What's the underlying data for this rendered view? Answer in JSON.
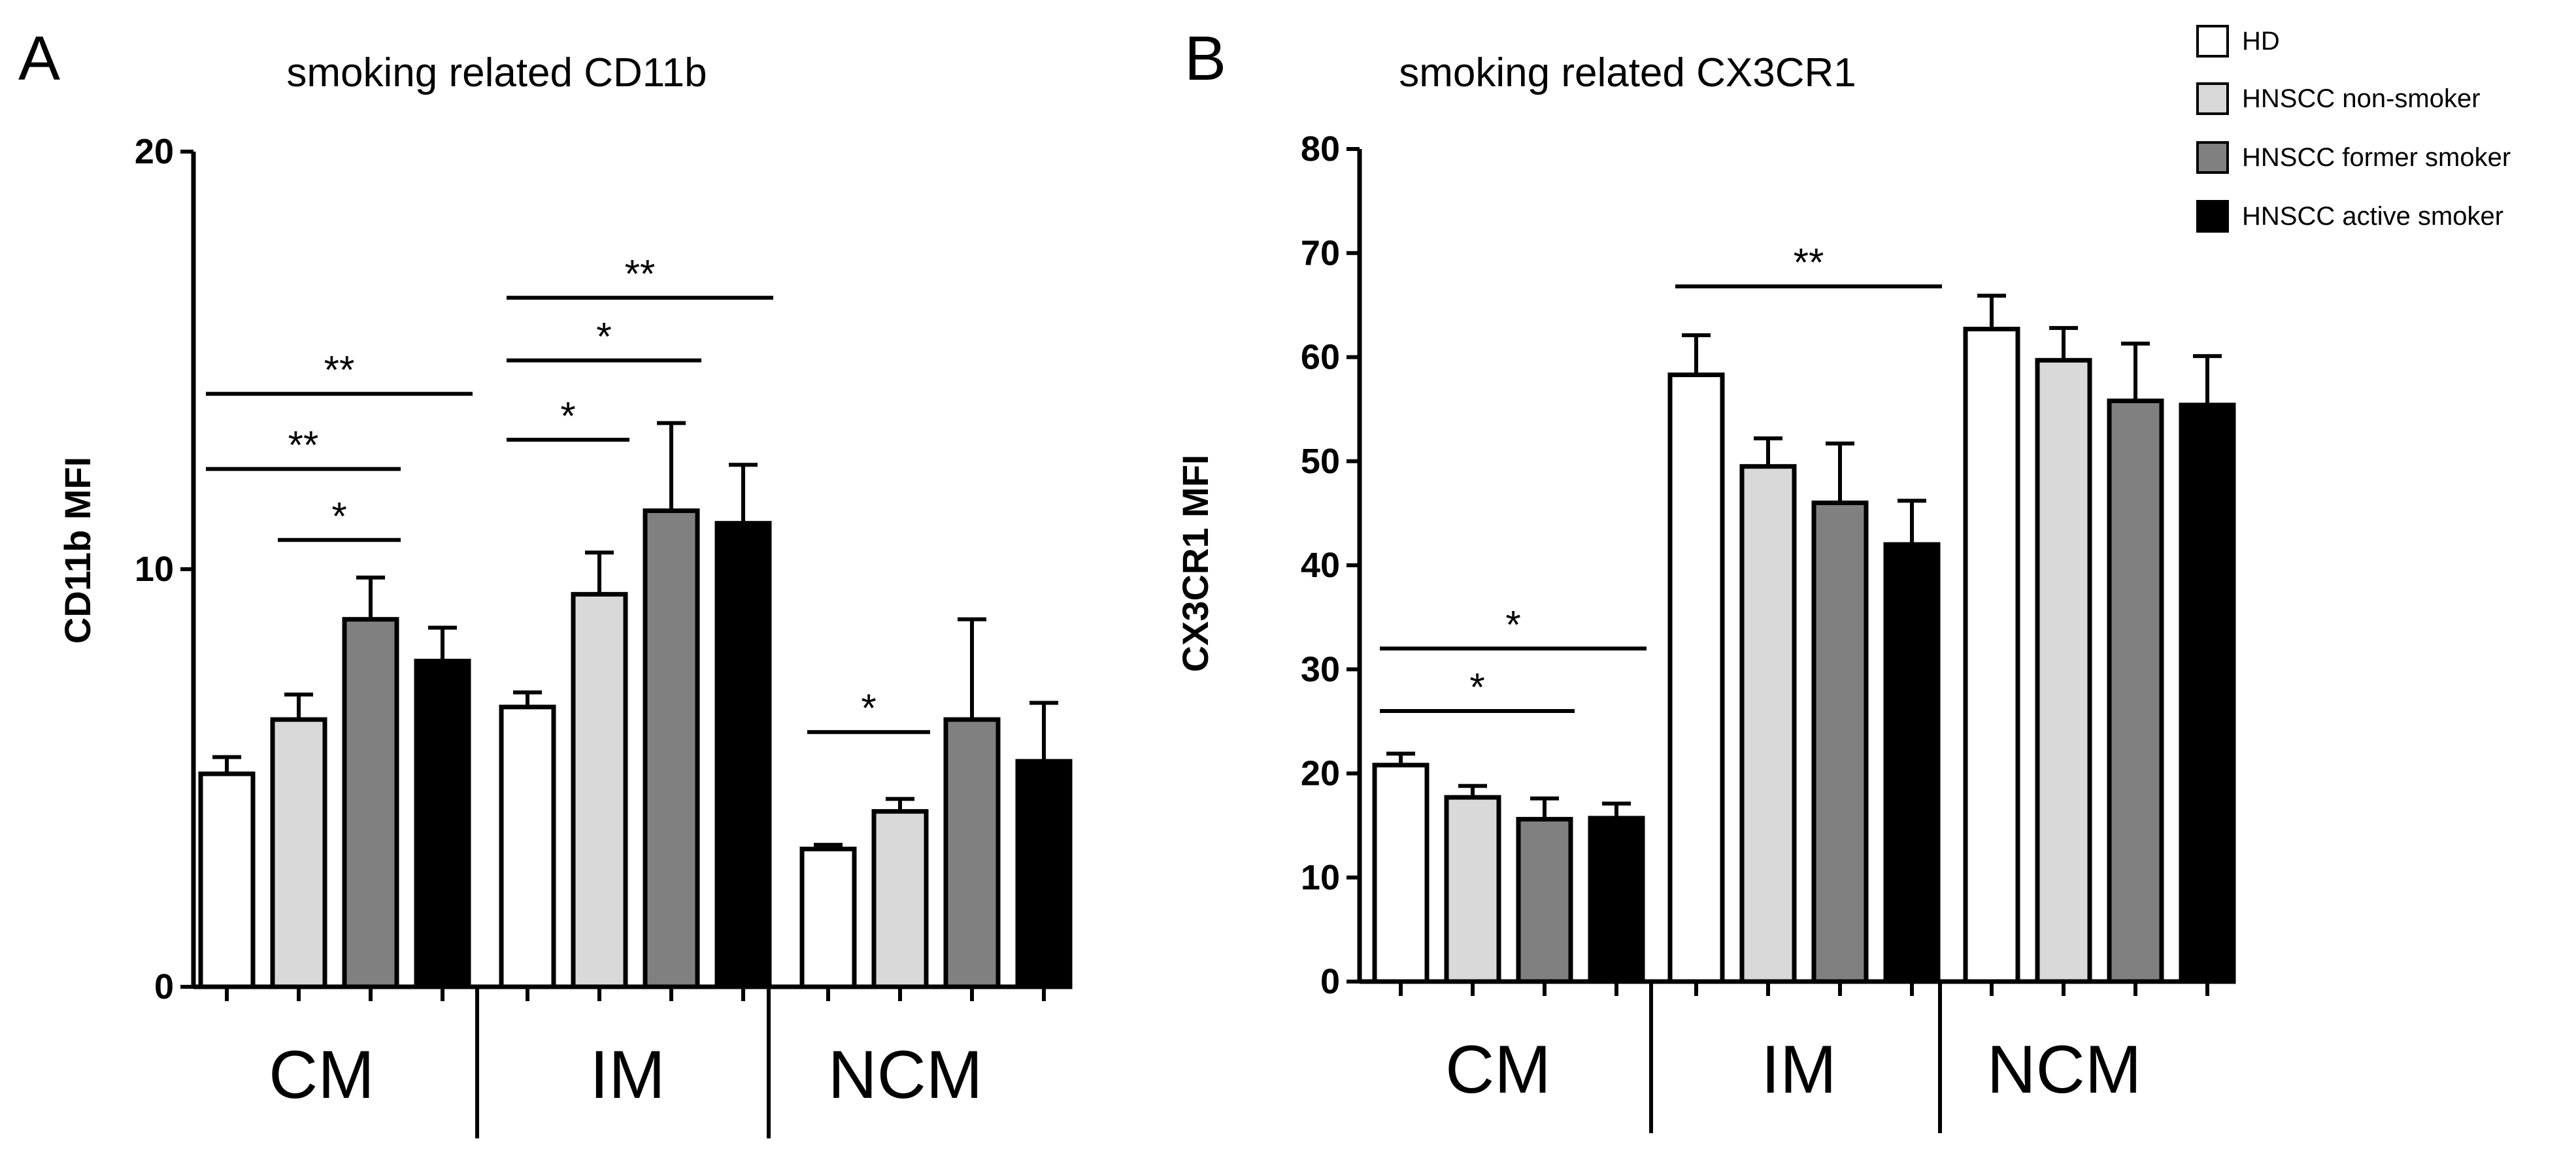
{
  "legend": {
    "entries": [
      {
        "label": "HD",
        "color": "#ffffff"
      },
      {
        "label": "HNSCC non-smoker",
        "color": "#d9d9d9"
      },
      {
        "label": "HNSCC former  smoker",
        "color": "#808080"
      },
      {
        "label": "HNSCC active smoker",
        "color": "#000000"
      }
    ]
  },
  "chart_data": [
    {
      "type": "bar",
      "panel": "A",
      "title": "smoking related CD11b",
      "ylabel": "CD11b MFI",
      "xlabel": "",
      "ylim": [
        0,
        20
      ],
      "yticks": [
        0,
        10,
        20
      ],
      "groups": [
        "CM",
        "IM",
        "NCM"
      ],
      "series": [
        {
          "name": "HD",
          "values": [
            5.1,
            6.7,
            3.3
          ],
          "errors": [
            0.4,
            0.35,
            0.1
          ]
        },
        {
          "name": "HNSCC non-smoker",
          "values": [
            6.4,
            9.4,
            4.2
          ],
          "errors": [
            0.6,
            1.0,
            0.3
          ]
        },
        {
          "name": "HNSCC former  smoker",
          "values": [
            8.8,
            11.4,
            6.4
          ],
          "errors": [
            1.0,
            2.1,
            2.4
          ]
        },
        {
          "name": "HNSCC active smoker",
          "values": [
            7.8,
            11.1,
            5.4
          ],
          "errors": [
            0.8,
            1.4,
            1.4
          ]
        }
      ],
      "annotations": [
        {
          "group": 0,
          "from": 0,
          "to": 3,
          "level": 14.2,
          "label": "**"
        },
        {
          "group": 0,
          "from": 0,
          "to": 2,
          "level": 12.4,
          "label": "**"
        },
        {
          "group": 0,
          "from": 1,
          "to": 2,
          "level": 10.7,
          "label": "*"
        },
        {
          "group": 1,
          "from": 0,
          "to": 3,
          "level": 16.5,
          "label": "**"
        },
        {
          "group": 1,
          "from": 0,
          "to": 2,
          "level": 15.0,
          "label": "*"
        },
        {
          "group": 1,
          "from": 0,
          "to": 1,
          "level": 13.1,
          "label": "*"
        },
        {
          "group": 2,
          "from": 0,
          "to": 1,
          "level": 6.1,
          "label": "*"
        }
      ]
    },
    {
      "type": "bar",
      "panel": "B",
      "title": "smoking related CX3CR1",
      "ylabel": "CX3CR1 MFI",
      "xlabel": "",
      "ylim": [
        0,
        80
      ],
      "yticks": [
        0,
        10,
        20,
        30,
        40,
        50,
        60,
        70,
        80
      ],
      "groups": [
        "CM",
        "IM",
        "NCM"
      ],
      "series": [
        {
          "name": "HD",
          "values": [
            20.8,
            58.3,
            62.7
          ],
          "errors": [
            1.1,
            3.8,
            3.2
          ]
        },
        {
          "name": "HNSCC non-smoker",
          "values": [
            17.7,
            49.5,
            59.7
          ],
          "errors": [
            1.1,
            2.7,
            3.1
          ]
        },
        {
          "name": "HNSCC former  smoker",
          "values": [
            15.6,
            46.0,
            55.8
          ],
          "errors": [
            2.0,
            5.7,
            5.5
          ]
        },
        {
          "name": "HNSCC active smoker",
          "values": [
            15.7,
            42.0,
            55.4
          ],
          "errors": [
            1.4,
            4.2,
            4.7
          ]
        }
      ],
      "annotations": [
        {
          "group": 0,
          "from": 0,
          "to": 3,
          "level": 32.0,
          "label": "*"
        },
        {
          "group": 0,
          "from": 0,
          "to": 2,
          "level": 26.0,
          "label": "*"
        },
        {
          "group": 1,
          "from": 0,
          "to": 3,
          "level": 66.8,
          "label": "**"
        }
      ]
    }
  ]
}
